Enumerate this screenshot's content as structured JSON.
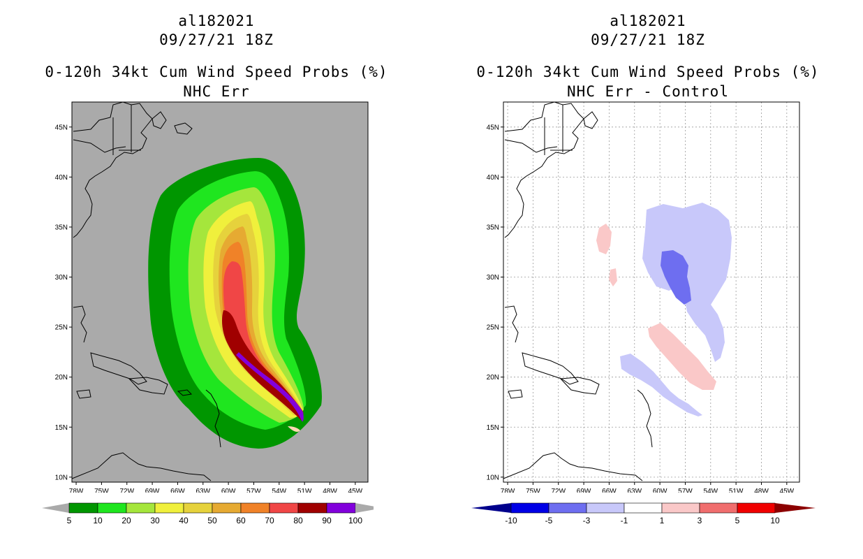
{
  "panels": [
    {
      "storm_id": "al182021",
      "datetime": "09/27/21 18Z",
      "title": "0-120h 34kt Cum Wind Speed Probs (%)",
      "subtitle": "NHC Err",
      "colors": {
        "land_ocean_bg": "#aaaaaa"
      }
    },
    {
      "storm_id": "al182021",
      "datetime": "09/27/21 18Z",
      "title": "0-120h 34kt Cum Wind Speed Probs (%)",
      "subtitle": "NHC Err - Control",
      "colors": {
        "land_ocean_bg": "#ffffff"
      }
    }
  ],
  "chart_data": [
    {
      "type": "heatmap",
      "title": "0-120h 34kt Cum Wind Speed Probs (%)",
      "subtitle": "NHC Err",
      "x_ticks": [
        "78W",
        "75W",
        "72W",
        "69W",
        "66W",
        "63W",
        "60W",
        "57W",
        "54W",
        "51W",
        "48W",
        "45W"
      ],
      "y_ticks": [
        "10N",
        "15N",
        "20N",
        "25N",
        "30N",
        "35N",
        "40N",
        "45N"
      ],
      "xlim": [
        -78.5,
        -43.5
      ],
      "ylim": [
        9.5,
        47.5
      ],
      "grid": false,
      "levels": [
        5,
        10,
        20,
        30,
        40,
        50,
        60,
        70,
        80,
        90,
        100
      ],
      "level_labels": [
        "5",
        "10",
        "20",
        "30",
        "40",
        "50",
        "60",
        "70",
        "80",
        "90",
        "100"
      ],
      "fill_colors": [
        "#009600",
        "#1fe61f",
        "#a5e63c",
        "#f0f03c",
        "#e6d23c",
        "#e6aa32",
        "#f08228",
        "#f04646",
        "#a00000",
        "#8200dc"
      ]
    },
    {
      "type": "heatmap",
      "title": "0-120h 34kt Cum Wind Speed Probs (%)",
      "subtitle": "NHC Err - Control",
      "x_ticks": [
        "78W",
        "75W",
        "72W",
        "69W",
        "66W",
        "63W",
        "60W",
        "57W",
        "54W",
        "51W",
        "48W",
        "45W"
      ],
      "y_ticks": [
        "10N",
        "15N",
        "20N",
        "25N",
        "30N",
        "35N",
        "40N",
        "45N"
      ],
      "xlim": [
        -78.5,
        -43.5
      ],
      "ylim": [
        9.5,
        47.5
      ],
      "grid": true,
      "levels": [
        -10,
        -5,
        -3,
        -1,
        1,
        3,
        5,
        10
      ],
      "level_labels": [
        "-10",
        "-5",
        "-3",
        "-1",
        "1",
        "3",
        "5",
        "10"
      ],
      "fill_colors": [
        "#0000e6",
        "#6e6ef0",
        "#c8c8fa",
        "#ffffff",
        "#fac8c8",
        "#f06e6e",
        "#f00000"
      ],
      "end_colors": [
        "#00008c",
        "#8c0000"
      ]
    }
  ]
}
